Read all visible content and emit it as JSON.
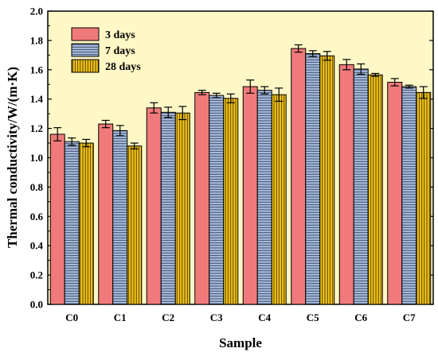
{
  "chart_data": {
    "type": "bar",
    "title": "",
    "xlabel": "Sample",
    "ylabel": "Thermal conductivity/W/(m·K)",
    "ylim": [
      0,
      2.0
    ],
    "ytick_step": 0.2,
    "categories": [
      "C0",
      "C1",
      "C2",
      "C3",
      "C4",
      "C5",
      "C6",
      "C7"
    ],
    "series": [
      {
        "name": "3 days",
        "color": "#f07a7a",
        "pattern": "none",
        "values": [
          1.16,
          1.23,
          1.34,
          1.445,
          1.485,
          1.745,
          1.635,
          1.515
        ],
        "errors": [
          0.045,
          0.025,
          0.035,
          0.015,
          0.045,
          0.025,
          0.035,
          0.025
        ]
      },
      {
        "name": "7 days",
        "color": "#a9bfe0",
        "pattern": "horizontal",
        "values": [
          1.11,
          1.185,
          1.31,
          1.425,
          1.46,
          1.71,
          1.605,
          1.485
        ],
        "errors": [
          0.025,
          0.035,
          0.035,
          0.015,
          0.025,
          0.02,
          0.035,
          0.01
        ]
      },
      {
        "name": "28 days",
        "color": "#f5c518",
        "pattern": "vertical",
        "values": [
          1.1,
          1.08,
          1.305,
          1.405,
          1.43,
          1.695,
          1.565,
          1.445
        ],
        "errors": [
          0.025,
          0.02,
          0.045,
          0.03,
          0.045,
          0.03,
          0.01,
          0.04
        ]
      }
    ],
    "plot_background": "#fff8c6",
    "legend_position": "top-left",
    "grid": false
  }
}
